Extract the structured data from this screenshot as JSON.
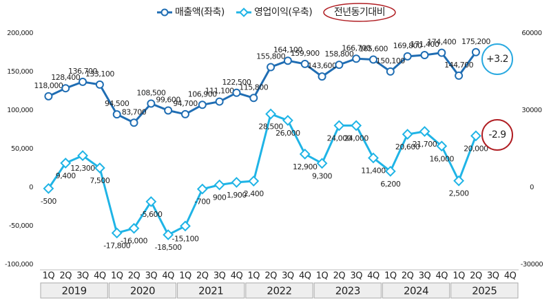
{
  "chart_data": {
    "type": "line",
    "legend_note": "전년동기대비",
    "categories": [
      "1Q",
      "2Q",
      "3Q",
      "4Q",
      "1Q",
      "2Q",
      "3Q",
      "4Q",
      "1Q",
      "2Q",
      "3Q",
      "4Q",
      "1Q",
      "2Q",
      "3Q",
      "4Q",
      "1Q",
      "2Q",
      "3Q",
      "4Q",
      "1Q",
      "2Q",
      "3Q",
      "4Q",
      "1Q",
      "2Q",
      "3Q",
      "4Q"
    ],
    "years": [
      "2019",
      "2020",
      "2021",
      "2022",
      "2023",
      "2024",
      "2025"
    ],
    "series": [
      {
        "name": "매출액(좌축)",
        "color": "#1f6db3",
        "marker": "circle",
        "axis": "y",
        "values": [
          118000,
          128400,
          136700,
          133100,
          94500,
          83700,
          108500,
          99600,
          94700,
          106900,
          111100,
          122500,
          115800,
          155800,
          164100,
          159900,
          143600,
          158800,
          166700,
          165600,
          150100,
          169800,
          171400,
          174400,
          144700,
          175200,
          null,
          null
        ],
        "value_labels": [
          "118,000",
          "128,400",
          "136,700",
          "133,100",
          "94,500",
          "83,700",
          "108,500",
          "99,600",
          "94,700",
          "106,900",
          "111,100",
          "122,500",
          "115,800",
          "155,800",
          "164,100",
          "159,900",
          "143,600",
          "158,800",
          "166,700",
          "165,600",
          "150,100",
          "169,800",
          "171,400",
          "174,400",
          "144,700",
          "175,200",
          null,
          null
        ]
      },
      {
        "name": "영업이익(우축)",
        "color": "#1fb4e6",
        "marker": "diamond",
        "axis": "y2",
        "values": [
          -500,
          9400,
          12300,
          7500,
          -17800,
          -16000,
          -5600,
          -18500,
          -15100,
          -700,
          900,
          1900,
          2400,
          28500,
          26000,
          12900,
          9300,
          24000,
          24000,
          11400,
          6200,
          20600,
          21700,
          16000,
          2500,
          20000,
          null,
          null
        ],
        "value_labels": [
          "-500",
          "9,400",
          "12,300",
          "7,500",
          "-17,800",
          "-16,000",
          "-5,600",
          "-18,500",
          "-15,100",
          "-700",
          "900",
          "1,900",
          "2,400",
          "28,500",
          "26,000",
          "12,900",
          "9,300",
          "24,000",
          "24,000",
          "11,400",
          "6,200",
          "20,600",
          "21,700",
          "16,000",
          "2,500",
          "20,000",
          null,
          null
        ]
      }
    ],
    "ylim": [
      -100000,
      200000
    ],
    "yticks": [
      {
        "value": -100000,
        "label": "-100,000"
      },
      {
        "value": -50000,
        "label": "-50,000"
      },
      0,
      {
        "value": 50000,
        "label": "50,000"
      },
      {
        "value": 100000,
        "label": "100,000"
      },
      {
        "value": 150000,
        "label": "150,000"
      },
      {
        "value": 200000,
        "label": "200,000"
      }
    ],
    "y2lim": [
      -30000,
      60000
    ],
    "y2ticks": [
      -30000,
      0,
      30000,
      60000
    ],
    "annotations": [
      {
        "text": "+3.2",
        "color": "#29a9e0"
      },
      {
        "text": "-2.9",
        "color": "#b01e23"
      }
    ]
  }
}
